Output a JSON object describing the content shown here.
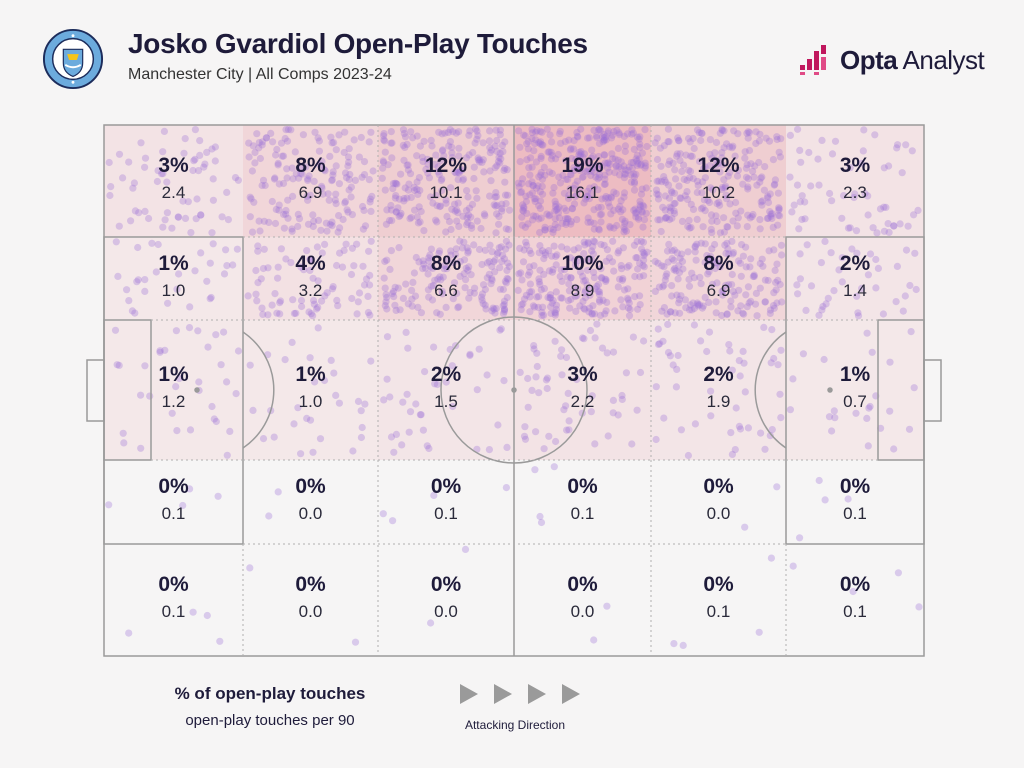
{
  "header": {
    "title": "Josko Gvardiol Open-Play Touches",
    "subtitle": "Manchester City | All Comps 2023-24",
    "brand_bold": "Opta",
    "brand_light": " Analyst",
    "crest_text": "MANCHESTER CITY"
  },
  "colors": {
    "heat": "#e8a0a8",
    "dot": "#9b6fd8",
    "ink": "#1e1b3a",
    "brand_mark": "#c0175d"
  },
  "legend": {
    "pct_label": "% of open-play touches",
    "p90_label": "open-play touches per 90",
    "direction_label": "Attacking Direction"
  },
  "chart_data": {
    "type": "heatmap",
    "title": "Josko Gvardiol Open-Play Touches",
    "rows": 5,
    "cols": 6,
    "row_order": "top-to-bottom",
    "col_order": "left-to-right (attacking right)",
    "pct_labels": [
      [
        "3%",
        "8%",
        "12%",
        "19%",
        "12%",
        "3%"
      ],
      [
        "1%",
        "4%",
        "8%",
        "10%",
        "8%",
        "2%"
      ],
      [
        "1%",
        "1%",
        "2%",
        "3%",
        "2%",
        "1%"
      ],
      [
        "0%",
        "0%",
        "0%",
        "0%",
        "0%",
        "0%"
      ],
      [
        "0%",
        "0%",
        "0%",
        "0%",
        "0%",
        "0%"
      ]
    ],
    "pct_values": [
      [
        3,
        8,
        12,
        19,
        12,
        3
      ],
      [
        1,
        4,
        8,
        10,
        8,
        2
      ],
      [
        1,
        1,
        2,
        3,
        2,
        1
      ],
      [
        0,
        0,
        0,
        0,
        0,
        0
      ],
      [
        0,
        0,
        0,
        0,
        0,
        0
      ]
    ],
    "per90_labels": [
      [
        "2.4",
        "6.9",
        "10.1",
        "16.1",
        "10.2",
        "2.3"
      ],
      [
        "1.0",
        "3.2",
        "6.6",
        "8.9",
        "6.9",
        "1.4"
      ],
      [
        "1.2",
        "1.0",
        "1.5",
        "2.2",
        "1.9",
        "0.7"
      ],
      [
        "0.1",
        "0.0",
        "0.1",
        "0.1",
        "0.0",
        "0.1"
      ],
      [
        "0.1",
        "0.0",
        "0.0",
        "0.0",
        "0.1",
        "0.1"
      ]
    ]
  }
}
